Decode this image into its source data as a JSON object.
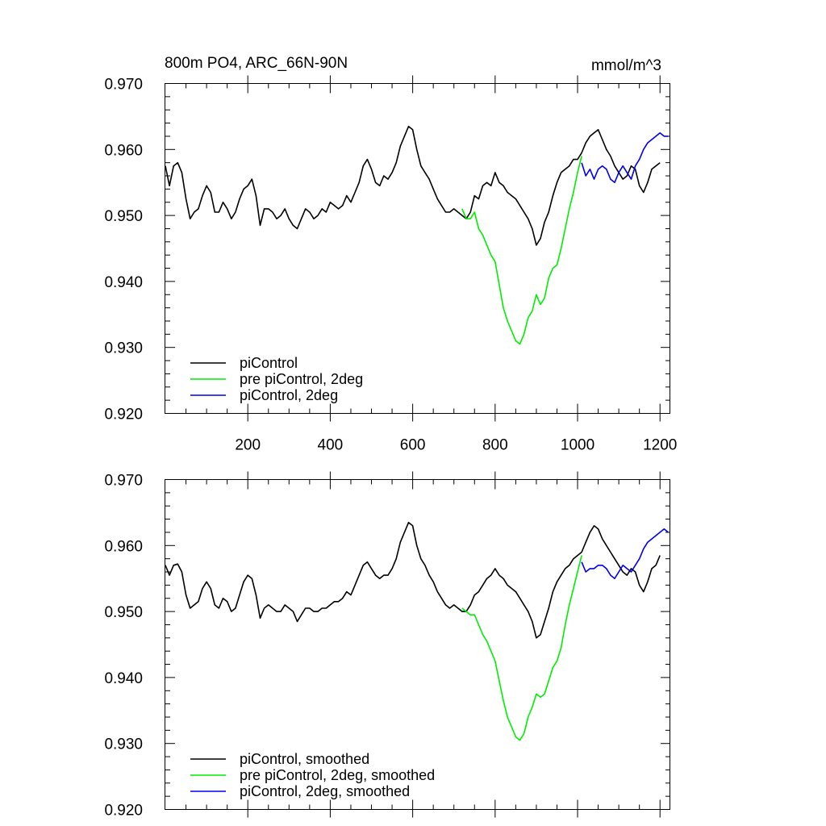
{
  "chart_data": [
    {
      "type": "line",
      "title": "800m PO4, ARC_66N-90N",
      "units": "mmol/m^3",
      "xlim": [
        0,
        1225
      ],
      "ylim": [
        0.92,
        0.97
      ],
      "x_ticks": [
        200,
        400,
        600,
        800,
        1000,
        1200
      ],
      "x_tick_labels": [
        "200",
        "400",
        "600",
        "800",
        "1000",
        "1200"
      ],
      "y_ticks": [
        0.92,
        0.93,
        0.94,
        0.95,
        0.96,
        0.97
      ],
      "y_tick_labels": [
        "0.920",
        "0.930",
        "0.940",
        "0.950",
        "0.960",
        "0.970"
      ],
      "legend_position": "bottom-left",
      "grid": false,
      "series": [
        {
          "name": "piControl",
          "color": "#000000",
          "x": [
            0,
            10,
            20,
            30,
            40,
            50,
            60,
            70,
            80,
            90,
            100,
            110,
            120,
            130,
            140,
            150,
            160,
            170,
            180,
            190,
            200,
            210,
            220,
            230,
            240,
            250,
            260,
            270,
            280,
            290,
            300,
            310,
            320,
            330,
            340,
            350,
            360,
            370,
            380,
            390,
            400,
            410,
            420,
            430,
            440,
            450,
            460,
            470,
            480,
            490,
            500,
            510,
            520,
            530,
            540,
            550,
            560,
            570,
            580,
            590,
            600,
            610,
            620,
            630,
            640,
            650,
            660,
            670,
            680,
            690,
            700,
            710,
            720,
            730,
            740,
            750,
            760,
            770,
            780,
            790,
            800,
            810,
            820,
            830,
            840,
            850,
            860,
            870,
            880,
            890,
            900,
            910,
            920,
            930,
            940,
            950,
            960,
            970,
            980,
            990,
            1000,
            1010,
            1020,
            1030,
            1040,
            1050,
            1060,
            1070,
            1080,
            1090,
            1100,
            1110,
            1120,
            1130,
            1140,
            1150,
            1160,
            1170,
            1180,
            1190,
            1200
          ],
          "values": [
            0.9575,
            0.9545,
            0.9575,
            0.958,
            0.9565,
            0.9525,
            0.9495,
            0.9505,
            0.951,
            0.953,
            0.9545,
            0.9535,
            0.9505,
            0.9505,
            0.952,
            0.951,
            0.9495,
            0.9505,
            0.9525,
            0.954,
            0.9545,
            0.9555,
            0.953,
            0.9485,
            0.951,
            0.951,
            0.9505,
            0.9495,
            0.95,
            0.951,
            0.9495,
            0.9485,
            0.948,
            0.9495,
            0.951,
            0.9505,
            0.9495,
            0.95,
            0.951,
            0.9505,
            0.952,
            0.9515,
            0.951,
            0.9515,
            0.953,
            0.952,
            0.9535,
            0.955,
            0.9575,
            0.9585,
            0.957,
            0.955,
            0.9545,
            0.956,
            0.9555,
            0.9565,
            0.958,
            0.9605,
            0.962,
            0.9635,
            0.963,
            0.96,
            0.9575,
            0.9565,
            0.9555,
            0.954,
            0.9525,
            0.9515,
            0.9505,
            0.9505,
            0.951,
            0.9505,
            0.95,
            0.9495,
            0.9505,
            0.953,
            0.9525,
            0.9545,
            0.955,
            0.9545,
            0.9565,
            0.955,
            0.9545,
            0.9535,
            0.953,
            0.9525,
            0.9515,
            0.9505,
            0.9495,
            0.948,
            0.9455,
            0.9465,
            0.949,
            0.9505,
            0.953,
            0.955,
            0.9565,
            0.957,
            0.9575,
            0.9585,
            0.9585,
            0.9595,
            0.961,
            0.962,
            0.9625,
            0.963,
            0.9615,
            0.96,
            0.959,
            0.9575,
            0.9565,
            0.9555,
            0.956,
            0.9575,
            0.957,
            0.9545,
            0.9535,
            0.955,
            0.957,
            0.9575,
            0.958
          ]
        },
        {
          "name": "pre piControl, 2deg",
          "color": "#00ee00",
          "x": [
            720,
            730,
            740,
            750,
            760,
            770,
            780,
            790,
            800,
            810,
            820,
            830,
            840,
            850,
            860,
            870,
            880,
            890,
            900,
            910,
            920,
            930,
            940,
            950,
            960,
            970,
            980,
            990,
            1000,
            1010
          ],
          "values": [
            0.951,
            0.9495,
            0.9495,
            0.9505,
            0.948,
            0.947,
            0.9455,
            0.944,
            0.943,
            0.9395,
            0.936,
            0.934,
            0.9325,
            0.931,
            0.9305,
            0.932,
            0.9345,
            0.9355,
            0.938,
            0.9365,
            0.9375,
            0.9405,
            0.942,
            0.9425,
            0.945,
            0.948,
            0.951,
            0.9535,
            0.9565,
            0.959
          ]
        },
        {
          "name": "piControl, 2deg",
          "color": "#0000ee",
          "x": [
            1010,
            1020,
            1030,
            1040,
            1050,
            1060,
            1070,
            1080,
            1090,
            1100,
            1110,
            1120,
            1130,
            1140,
            1150,
            1160,
            1170,
            1180,
            1190,
            1200,
            1210,
            1220
          ],
          "values": [
            0.958,
            0.956,
            0.957,
            0.9555,
            0.957,
            0.9575,
            0.957,
            0.9555,
            0.955,
            0.9565,
            0.9575,
            0.9565,
            0.9555,
            0.9575,
            0.9585,
            0.96,
            0.961,
            0.9615,
            0.962,
            0.9625,
            0.962,
            0.962
          ]
        }
      ]
    },
    {
      "type": "line",
      "title": "",
      "units": "",
      "xlim": [
        0,
        1225
      ],
      "ylim": [
        0.92,
        0.97
      ],
      "x_ticks": [
        200,
        400,
        600,
        800,
        1000,
        1200
      ],
      "x_tick_labels": [],
      "y_ticks": [
        0.92,
        0.93,
        0.94,
        0.95,
        0.96,
        0.97
      ],
      "y_tick_labels": [
        "0.920",
        "0.930",
        "0.940",
        "0.950",
        "0.960",
        "0.970"
      ],
      "legend_position": "bottom-left",
      "grid": false,
      "series": [
        {
          "name": "piControl, smoothed",
          "color": "#000000",
          "x": [
            0,
            10,
            20,
            30,
            40,
            50,
            60,
            70,
            80,
            90,
            100,
            110,
            120,
            130,
            140,
            150,
            160,
            170,
            180,
            190,
            200,
            210,
            220,
            230,
            240,
            250,
            260,
            270,
            280,
            290,
            300,
            310,
            320,
            330,
            340,
            350,
            360,
            370,
            380,
            390,
            400,
            410,
            420,
            430,
            440,
            450,
            460,
            470,
            480,
            490,
            500,
            510,
            520,
            530,
            540,
            550,
            560,
            570,
            580,
            590,
            600,
            610,
            620,
            630,
            640,
            650,
            660,
            670,
            680,
            690,
            700,
            710,
            720,
            730,
            740,
            750,
            760,
            770,
            780,
            790,
            800,
            810,
            820,
            830,
            840,
            850,
            860,
            870,
            880,
            890,
            900,
            910,
            920,
            930,
            940,
            950,
            960,
            970,
            980,
            990,
            1000,
            1010,
            1020,
            1030,
            1040,
            1050,
            1060,
            1070,
            1080,
            1090,
            1100,
            1110,
            1120,
            1130,
            1140,
            1150,
            1160,
            1170,
            1180,
            1190,
            1200
          ],
          "values": [
            0.957,
            0.9555,
            0.957,
            0.9572,
            0.956,
            0.9525,
            0.9505,
            0.951,
            0.9515,
            0.9535,
            0.9545,
            0.9535,
            0.951,
            0.9505,
            0.952,
            0.9515,
            0.95,
            0.9505,
            0.9525,
            0.9545,
            0.9555,
            0.955,
            0.9525,
            0.949,
            0.9505,
            0.951,
            0.9505,
            0.95,
            0.95,
            0.951,
            0.9505,
            0.95,
            0.9485,
            0.9495,
            0.9505,
            0.9505,
            0.95,
            0.95,
            0.9505,
            0.9505,
            0.951,
            0.9515,
            0.9515,
            0.952,
            0.953,
            0.9525,
            0.954,
            0.9555,
            0.957,
            0.9575,
            0.9565,
            0.9555,
            0.955,
            0.9555,
            0.9555,
            0.9565,
            0.958,
            0.9605,
            0.962,
            0.9635,
            0.963,
            0.96,
            0.958,
            0.957,
            0.9555,
            0.9545,
            0.953,
            0.952,
            0.951,
            0.9505,
            0.951,
            0.9505,
            0.95,
            0.95,
            0.951,
            0.9525,
            0.953,
            0.954,
            0.955,
            0.9555,
            0.9565,
            0.9555,
            0.955,
            0.954,
            0.9535,
            0.953,
            0.952,
            0.951,
            0.95,
            0.9485,
            0.946,
            0.9465,
            0.9485,
            0.9505,
            0.953,
            0.9545,
            0.9555,
            0.9565,
            0.957,
            0.958,
            0.9585,
            0.959,
            0.9605,
            0.962,
            0.963,
            0.9625,
            0.961,
            0.96,
            0.959,
            0.958,
            0.957,
            0.956,
            0.9555,
            0.9565,
            0.956,
            0.954,
            0.953,
            0.9545,
            0.9565,
            0.957,
            0.9585
          ]
        },
        {
          "name": "pre piControl, 2deg, smoothed",
          "color": "#00ee00",
          "x": [
            720,
            730,
            740,
            750,
            760,
            770,
            780,
            790,
            800,
            810,
            820,
            830,
            840,
            850,
            860,
            870,
            880,
            890,
            900,
            910,
            920,
            930,
            940,
            950,
            960,
            970,
            980,
            990,
            1000,
            1010
          ],
          "values": [
            0.9505,
            0.95,
            0.9495,
            0.9495,
            0.948,
            0.9465,
            0.9455,
            0.944,
            0.9425,
            0.9395,
            0.9365,
            0.934,
            0.9325,
            0.931,
            0.9305,
            0.9315,
            0.934,
            0.9355,
            0.9375,
            0.937,
            0.9375,
            0.9395,
            0.9415,
            0.9425,
            0.9445,
            0.948,
            0.951,
            0.9535,
            0.956,
            0.9585
          ]
        },
        {
          "name": "piControl, 2deg, smoothed",
          "color": "#0000ee",
          "x": [
            1010,
            1020,
            1030,
            1040,
            1050,
            1060,
            1070,
            1080,
            1090,
            1100,
            1110,
            1120,
            1130,
            1140,
            1150,
            1160,
            1170,
            1180,
            1190,
            1200,
            1210,
            1220
          ],
          "values": [
            0.9575,
            0.956,
            0.9565,
            0.9565,
            0.957,
            0.957,
            0.9565,
            0.9555,
            0.955,
            0.956,
            0.957,
            0.9565,
            0.956,
            0.957,
            0.958,
            0.9595,
            0.9605,
            0.961,
            0.9615,
            0.962,
            0.9625,
            0.962
          ]
        }
      ]
    }
  ]
}
